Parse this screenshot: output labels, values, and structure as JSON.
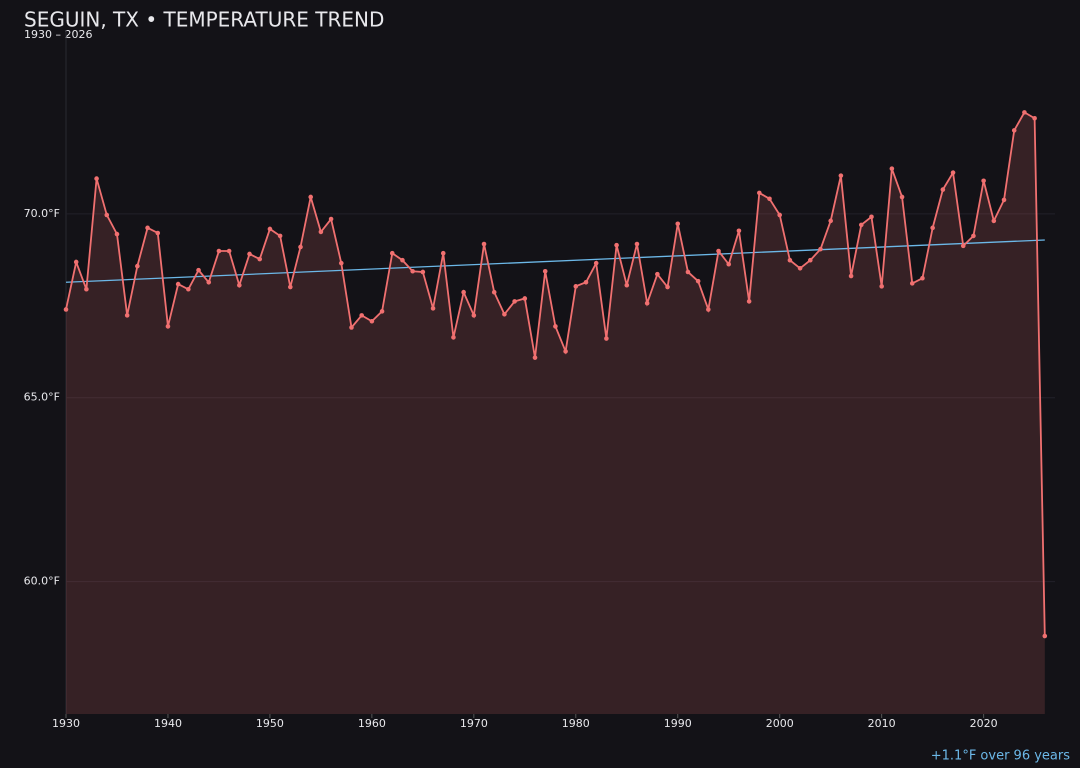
{
  "chart_data": {
    "type": "line",
    "title": "SEGUIN, TX • TEMPERATURE TREND",
    "subtitle": "1930 – 2026",
    "annotation": "+1.1°F over 96 years",
    "x": [
      1930,
      1931,
      1932,
      1933,
      1934,
      1935,
      1936,
      1937,
      1938,
      1939,
      1940,
      1941,
      1942,
      1943,
      1944,
      1945,
      1946,
      1947,
      1948,
      1949,
      1950,
      1951,
      1952,
      1953,
      1954,
      1955,
      1956,
      1957,
      1958,
      1959,
      1960,
      1961,
      1962,
      1963,
      1964,
      1965,
      1966,
      1967,
      1968,
      1969,
      1970,
      1971,
      1972,
      1973,
      1974,
      1975,
      1976,
      1977,
      1978,
      1979,
      1980,
      1981,
      1982,
      1983,
      1984,
      1985,
      1986,
      1987,
      1988,
      1989,
      1990,
      1991,
      1992,
      1993,
      1994,
      1995,
      1996,
      1997,
      1998,
      1999,
      2000,
      2001,
      2002,
      2003,
      2004,
      2005,
      2006,
      2007,
      2008,
      2009,
      2010,
      2011,
      2012,
      2013,
      2014,
      2015,
      2016,
      2017,
      2018,
      2019,
      2020,
      2021,
      2022,
      2023,
      2024,
      2025,
      2026
    ],
    "series": [
      {
        "color": "#f07070",
        "values": [
          67.4,
          68.69,
          67.95,
          70.96,
          69.97,
          69.45,
          67.24,
          68.58,
          69.62,
          69.48,
          66.94,
          68.09,
          67.95,
          68.47,
          68.14,
          68.99,
          68.99,
          68.06,
          68.91,
          68.77,
          69.59,
          69.4,
          68.01,
          69.1,
          70.46,
          69.51,
          69.86,
          68.66,
          66.91,
          67.24,
          67.08,
          67.35,
          68.93,
          68.74,
          68.44,
          68.42,
          67.43,
          68.93,
          66.64,
          67.87,
          67.24,
          69.18,
          67.87,
          67.27,
          67.62,
          67.7,
          66.09,
          68.44,
          66.94,
          66.26,
          68.03,
          68.14,
          68.66,
          66.61,
          69.15,
          68.06,
          69.18,
          67.57,
          68.36,
          68.01,
          69.73,
          68.42,
          68.17,
          67.4,
          68.99,
          68.63,
          69.54,
          67.62,
          70.57,
          70.41,
          69.97,
          68.74,
          68.52,
          68.74,
          69.04,
          69.81,
          71.04,
          68.31,
          69.7,
          69.92,
          68.03,
          71.23,
          70.46,
          68.11,
          68.25,
          69.62,
          70.66,
          71.12,
          69.13,
          69.4,
          70.9,
          69.81,
          70.38,
          72.27,
          72.76,
          72.6,
          58.52
        ]
      }
    ],
    "trend": {
      "x": [
        1930,
        2026
      ],
      "values": [
        68.14,
        69.29
      ],
      "color": "#6cb8e8"
    },
    "xlim": [
      1930,
      2027
    ],
    "ylim": [
      56.4,
      75.0
    ],
    "xticks": [
      1930,
      1940,
      1950,
      1960,
      1970,
      1980,
      1990,
      2000,
      2010,
      2020
    ],
    "yticks": [
      {
        "value": 60,
        "label": "60.0°F"
      },
      {
        "value": 65,
        "label": "65.0°F"
      },
      {
        "value": 70,
        "label": "70.0°F"
      }
    ],
    "grid": true
  }
}
